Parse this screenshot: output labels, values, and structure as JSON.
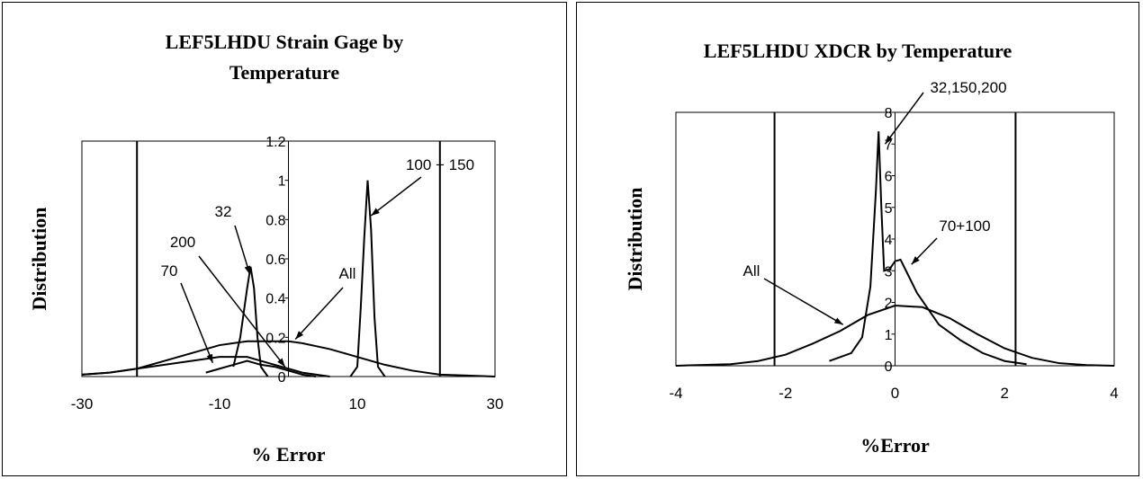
{
  "chart_data": [
    {
      "type": "line",
      "title": "LEF5LHDU Strain Gage by Temperature",
      "title_lines": [
        "LEF5LHDU Strain Gage by",
        "Temperature"
      ],
      "xlabel": "% Error",
      "ylabel": "Distribution",
      "xlim": [
        -30,
        30
      ],
      "ylim": [
        0,
        1.2
      ],
      "x_ticks": [
        "-30",
        "-10",
        "10",
        "30"
      ],
      "y_ticks": [
        "0",
        "0.2",
        "0.4",
        "0.6",
        "0.8",
        "1",
        "1.2"
      ],
      "vertical_lines": [
        -22,
        22
      ],
      "series": [
        {
          "name": "All",
          "x": [
            -30,
            -26,
            -22,
            -18,
            -14,
            -10,
            -6,
            -2,
            0,
            2,
            6,
            10,
            14,
            18,
            22,
            26,
            30
          ],
          "y": [
            0.01,
            0.02,
            0.04,
            0.08,
            0.12,
            0.16,
            0.18,
            0.18,
            0.18,
            0.17,
            0.14,
            0.1,
            0.06,
            0.03,
            0.01,
            0.005,
            0
          ]
        },
        {
          "name": "70",
          "x": [
            -30,
            -26,
            -22,
            -18,
            -14,
            -10,
            -8,
            -6,
            -4,
            -2,
            0,
            2,
            6
          ],
          "y": [
            0.01,
            0.02,
            0.04,
            0.06,
            0.08,
            0.1,
            0.1,
            0.1,
            0.08,
            0.06,
            0.04,
            0.02,
            0
          ]
        },
        {
          "name": "32",
          "x": [
            -8,
            -7,
            -6,
            -5.5,
            -5,
            -4.5,
            -4,
            -3
          ],
          "y": [
            0.05,
            0.2,
            0.45,
            0.56,
            0.45,
            0.2,
            0.05,
            0
          ]
        },
        {
          "name": "200",
          "x": [
            -12,
            -10,
            -8,
            -6,
            -4,
            -2,
            0,
            2,
            4
          ],
          "y": [
            0.02,
            0.04,
            0.06,
            0.08,
            0.06,
            0.05,
            0.03,
            0.01,
            0
          ]
        },
        {
          "name": "100 + 150",
          "x": [
            9,
            10,
            10.5,
            11,
            11.5,
            12,
            12.5,
            13,
            14
          ],
          "y": [
            0,
            0.05,
            0.35,
            0.7,
            1.0,
            0.75,
            0.3,
            0.05,
            0
          ]
        }
      ],
      "annotations": [
        "100 + 150",
        "32",
        "200",
        "70",
        "All"
      ]
    },
    {
      "type": "line",
      "title": "LEF5LHDU XDCR by Temperature",
      "xlabel": "%Error",
      "ylabel": "Distribution",
      "xlim": [
        -4,
        4
      ],
      "ylim": [
        0,
        8
      ],
      "x_ticks": [
        "-4",
        "-2",
        "0",
        "2",
        "4"
      ],
      "y_ticks": [
        "0",
        "1",
        "2",
        "3",
        "4",
        "5",
        "6",
        "7",
        "8"
      ],
      "vertical_lines": [
        -2.2,
        2.2
      ],
      "series": [
        {
          "name": "All",
          "x": [
            -4,
            -3,
            -2.5,
            -2,
            -1.5,
            -1,
            -0.5,
            0,
            0.5,
            1,
            1.5,
            2,
            2.5,
            3,
            3.5,
            4
          ],
          "y": [
            0,
            0.05,
            0.15,
            0.35,
            0.7,
            1.1,
            1.6,
            1.9,
            1.85,
            1.5,
            1.0,
            0.55,
            0.25,
            0.08,
            0.02,
            0
          ]
        },
        {
          "name": "32,150,200",
          "x": [
            -1.2,
            -0.8,
            -0.6,
            -0.45,
            -0.35,
            -0.3,
            -0.25,
            -0.2,
            -0.1,
            0,
            0.1,
            0.2,
            0.4,
            0.8,
            1.2,
            1.6,
            2,
            2.4
          ],
          "y": [
            0.15,
            0.4,
            0.9,
            2.5,
            5.5,
            7.4,
            5.0,
            3.0,
            3.05,
            3.3,
            3.35,
            3.0,
            2.3,
            1.3,
            0.8,
            0.4,
            0.15,
            0.05
          ]
        }
      ],
      "annotations": [
        "32,150,200",
        "70+100",
        "All"
      ]
    }
  ]
}
